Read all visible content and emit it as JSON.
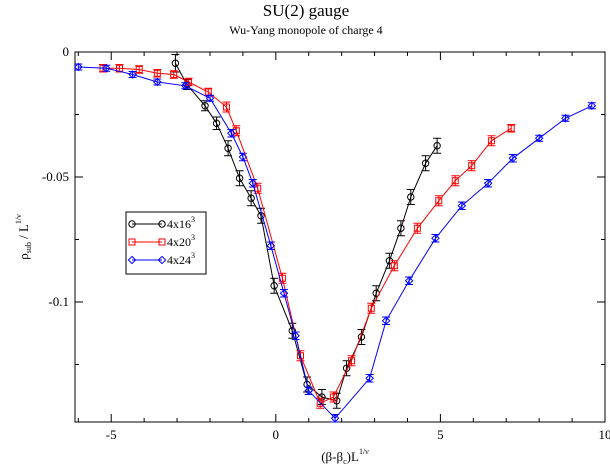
{
  "chart_data": {
    "type": "line",
    "title": "SU(2) gauge",
    "subtitle": "Wu-Yang monopole of charge 4",
    "xlabel": {
      "base": "(β-β",
      "sub": "c",
      "close": ")L",
      "sup": "1/ν"
    },
    "ylabel": {
      "base": "ρ",
      "sub": "sub",
      "mid": " / L",
      "sup": "1/ν"
    },
    "xlim": [
      -6.1,
      10
    ],
    "ylim": [
      -0.148,
      0
    ],
    "xticks": [
      {
        "value": -5,
        "label": "-5"
      },
      {
        "value": 0,
        "label": "0"
      },
      {
        "value": 5,
        "label": "5"
      },
      {
        "value": 10,
        "label": "10"
      }
    ],
    "yticks": [
      {
        "value": 0,
        "label": "0"
      },
      {
        "value": -0.05,
        "label": "-0.05"
      },
      {
        "value": -0.1,
        "label": "-0.1"
      }
    ],
    "grid": false,
    "legend_position": "center-left",
    "series": [
      {
        "name": "4x16",
        "name_sup": "3",
        "color": "#000000",
        "marker": "circle",
        "points": [
          [
            -3.05,
            -0.0045,
            0.0035
          ],
          [
            -2.7,
            -0.013,
            0.002
          ],
          [
            -2.15,
            -0.0215,
            0.002
          ],
          [
            -1.8,
            -0.0285,
            0.0025
          ],
          [
            -1.45,
            -0.0385,
            0.003
          ],
          [
            -1.1,
            -0.0505,
            0.003
          ],
          [
            -0.75,
            -0.0585,
            0.003
          ],
          [
            -0.45,
            -0.0655,
            0.003
          ],
          [
            -0.05,
            -0.0935,
            0.003
          ],
          [
            0.5,
            -0.1115,
            0.003
          ],
          [
            0.95,
            -0.133,
            0.003
          ],
          [
            1.4,
            -0.138,
            0.003
          ],
          [
            1.85,
            -0.1395,
            0.003
          ],
          [
            2.15,
            -0.1265,
            0.003
          ],
          [
            2.6,
            -0.114,
            0.003
          ],
          [
            3.05,
            -0.0965,
            0.003
          ],
          [
            3.45,
            -0.0835,
            0.003
          ],
          [
            3.8,
            -0.0705,
            0.003
          ],
          [
            4.1,
            -0.058,
            0.003
          ],
          [
            4.55,
            -0.0445,
            0.003
          ],
          [
            4.9,
            -0.0375,
            0.003
          ]
        ]
      },
      {
        "name": "4x20",
        "name_sup": "3",
        "color": "#ff0000",
        "marker": "square",
        "points": [
          [
            -5.25,
            -0.0065,
            0.0015
          ],
          [
            -4.75,
            -0.0065,
            0.0015
          ],
          [
            -4.15,
            -0.007,
            0.0015
          ],
          [
            -3.6,
            -0.0085,
            0.0015
          ],
          [
            -3.1,
            -0.009,
            0.0015
          ],
          [
            -2.65,
            -0.012,
            0.0015
          ],
          [
            -2.05,
            -0.016,
            0.0015
          ],
          [
            -1.5,
            -0.022,
            0.002
          ],
          [
            -1.2,
            -0.0315,
            0.002
          ],
          [
            -0.55,
            -0.0545,
            0.002
          ],
          [
            0.2,
            -0.0905,
            0.002
          ],
          [
            0.75,
            -0.1215,
            0.002
          ],
          [
            1.35,
            -0.1405,
            0.002
          ],
          [
            1.75,
            -0.138,
            0.002
          ],
          [
            2.3,
            -0.1235,
            0.002
          ],
          [
            2.9,
            -0.1025,
            0.002
          ],
          [
            3.6,
            -0.0855,
            0.002
          ],
          [
            4.3,
            -0.0705,
            0.002
          ],
          [
            4.95,
            -0.0595,
            0.002
          ],
          [
            5.45,
            -0.0515,
            0.002
          ],
          [
            5.95,
            -0.0455,
            0.002
          ],
          [
            6.55,
            -0.0355,
            0.002
          ],
          [
            7.15,
            -0.0305,
            0.0015
          ]
        ]
      },
      {
        "name": "4x24",
        "name_sup": "3",
        "color": "#0000ff",
        "marker": "diamond",
        "points": [
          [
            -6.0,
            -0.006,
            0.0012
          ],
          [
            -5.15,
            -0.0065,
            0.0012
          ],
          [
            -4.35,
            -0.009,
            0.0012
          ],
          [
            -3.6,
            -0.012,
            0.0012
          ],
          [
            -2.75,
            -0.0135,
            0.0012
          ],
          [
            -2.0,
            -0.0185,
            0.0012
          ],
          [
            -1.35,
            -0.0325,
            0.0015
          ],
          [
            -1.0,
            -0.042,
            0.0015
          ],
          [
            -0.7,
            -0.0525,
            0.0015
          ],
          [
            -0.15,
            -0.0775,
            0.0015
          ],
          [
            0.25,
            -0.0965,
            0.0015
          ],
          [
            0.6,
            -0.1135,
            0.0015
          ],
          [
            1.0,
            -0.1355,
            0.0015
          ],
          [
            1.8,
            -0.1465,
            0.0015
          ],
          [
            2.85,
            -0.1305,
            0.0015
          ],
          [
            3.35,
            -0.1075,
            0.0015
          ],
          [
            4.05,
            -0.0915,
            0.0015
          ],
          [
            4.85,
            -0.0745,
            0.0015
          ],
          [
            5.65,
            -0.0615,
            0.0015
          ],
          [
            6.45,
            -0.0525,
            0.0015
          ],
          [
            7.2,
            -0.0425,
            0.0015
          ],
          [
            8.0,
            -0.0345,
            0.0012
          ],
          [
            8.8,
            -0.0265,
            0.0012
          ],
          [
            9.6,
            -0.0215,
            0.0012
          ]
        ]
      }
    ]
  }
}
